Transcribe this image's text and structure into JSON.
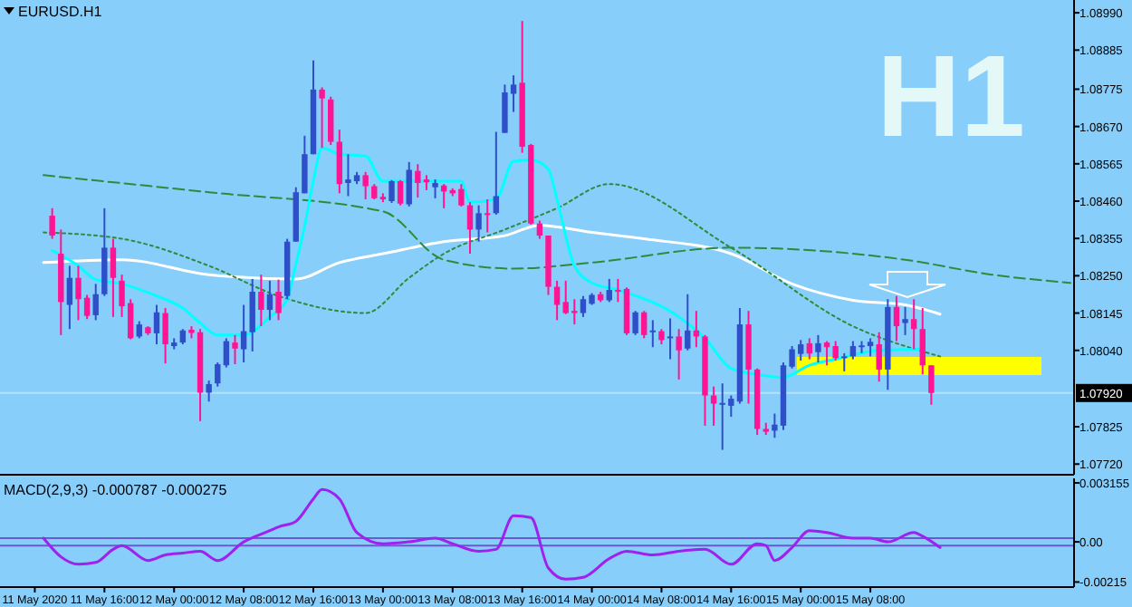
{
  "chart_data": [
    {
      "type": "candlestick",
      "title": "EURUSD.H1",
      "annotations": [
        "H1"
      ],
      "tick_labels": "y",
      "xlim": [
        "2020-05-11T04:00",
        "2020-05-16T07:24"
      ],
      "ylim": [
        1.0769,
        1.09026
      ],
      "yticks": [
        {
          "value": 1.0899,
          "label": "1.08990"
        },
        {
          "value": 1.08885,
          "label": "1.08885"
        },
        {
          "value": 1.08775,
          "label": "1.08775"
        },
        {
          "value": 1.0867,
          "label": "1.08670"
        },
        {
          "value": 1.08565,
          "label": "1.08565"
        },
        {
          "value": 1.0846,
          "label": "1.08460"
        },
        {
          "value": 1.08355,
          "label": "1.08355"
        },
        {
          "value": 1.0825,
          "label": "1.08250"
        },
        {
          "value": 1.08145,
          "label": "1.08145"
        },
        {
          "value": 1.0804,
          "label": "1.08040"
        },
        {
          "value": 1.07825,
          "label": "1.07825"
        },
        {
          "value": 1.0772,
          "label": "1.07720"
        }
      ],
      "ref_lines": [
        {
          "axis": "y",
          "value": 1.0792,
          "label": "1.07920",
          "color": "#b4e2fb"
        }
      ],
      "x": [
        "2020-05-11T10:00",
        "2020-05-11T11:00",
        "2020-05-11T12:00",
        "2020-05-11T13:00",
        "2020-05-11T14:00",
        "2020-05-11T15:00",
        "2020-05-11T16:00",
        "2020-05-11T17:00",
        "2020-05-11T18:00",
        "2020-05-11T19:00",
        "2020-05-11T20:00",
        "2020-05-11T21:00",
        "2020-05-11T22:00",
        "2020-05-11T23:00",
        "2020-05-12T00:00",
        "2020-05-12T01:00",
        "2020-05-12T02:00",
        "2020-05-12T03:00",
        "2020-05-12T04:00",
        "2020-05-12T05:00",
        "2020-05-12T06:00",
        "2020-05-12T07:00",
        "2020-05-12T08:00",
        "2020-05-12T09:00",
        "2020-05-12T10:00",
        "2020-05-12T11:00",
        "2020-05-12T12:00",
        "2020-05-12T13:00",
        "2020-05-12T14:00",
        "2020-05-12T15:00",
        "2020-05-12T16:00",
        "2020-05-12T17:00",
        "2020-05-12T18:00",
        "2020-05-12T19:00",
        "2020-05-12T20:00",
        "2020-05-12T21:00",
        "2020-05-12T22:00",
        "2020-05-12T23:00",
        "2020-05-13T00:00",
        "2020-05-13T01:00",
        "2020-05-13T02:00",
        "2020-05-13T03:00",
        "2020-05-13T04:00",
        "2020-05-13T05:00",
        "2020-05-13T06:00",
        "2020-05-13T07:00",
        "2020-05-13T08:00",
        "2020-05-13T09:00",
        "2020-05-13T10:00",
        "2020-05-13T11:00",
        "2020-05-13T12:00",
        "2020-05-13T13:00",
        "2020-05-13T14:00",
        "2020-05-13T15:00",
        "2020-05-13T16:00",
        "2020-05-13T17:00",
        "2020-05-13T18:00",
        "2020-05-13T19:00",
        "2020-05-13T20:00",
        "2020-05-13T21:00",
        "2020-05-13T22:00",
        "2020-05-13T23:00",
        "2020-05-14T00:00",
        "2020-05-14T01:00",
        "2020-05-14T02:00",
        "2020-05-14T03:00",
        "2020-05-14T04:00",
        "2020-05-14T05:00",
        "2020-05-14T06:00",
        "2020-05-14T07:00",
        "2020-05-14T08:00",
        "2020-05-14T09:00",
        "2020-05-14T10:00",
        "2020-05-14T11:00",
        "2020-05-14T12:00",
        "2020-05-14T13:00",
        "2020-05-14T14:00",
        "2020-05-14T15:00",
        "2020-05-14T16:00",
        "2020-05-14T17:00",
        "2020-05-14T18:00",
        "2020-05-14T19:00",
        "2020-05-14T20:00",
        "2020-05-14T21:00",
        "2020-05-14T22:00",
        "2020-05-14T23:00",
        "2020-05-15T00:00",
        "2020-05-15T01:00",
        "2020-05-15T02:00",
        "2020-05-15T03:00",
        "2020-05-15T04:00",
        "2020-05-15T05:00",
        "2020-05-15T06:00",
        "2020-05-15T07:00",
        "2020-05-15T08:00",
        "2020-05-15T09:00",
        "2020-05-15T10:00",
        "2020-05-15T11:00",
        "2020-05-15T12:00",
        "2020-05-15T13:00",
        "2020-05-15T14:00",
        "2020-05-15T15:00"
      ],
      "ohlc": [
        [
          1.08419,
          1.0844,
          1.08354,
          1.08363
        ],
        [
          1.08312,
          1.0838,
          1.08083,
          1.08176
        ],
        [
          1.08168,
          1.08278,
          1.081,
          1.08244
        ],
        [
          1.08244,
          1.08278,
          1.08125,
          1.08184
        ],
        [
          1.08188,
          1.08196,
          1.08128,
          1.08137
        ],
        [
          1.08139,
          1.08227,
          1.08125,
          1.08198
        ],
        [
          1.08198,
          1.0844,
          1.08193,
          1.08329
        ],
        [
          1.08329,
          1.08354,
          1.08134,
          1.08244
        ],
        [
          1.08236,
          1.08253,
          1.08134,
          1.08164
        ],
        [
          1.08173,
          1.08184,
          1.08071,
          1.08074
        ],
        [
          1.08079,
          1.08122,
          1.08074,
          1.08113
        ],
        [
          1.08105,
          1.08108,
          1.08083,
          1.08088
        ],
        [
          1.08088,
          1.08168,
          1.08057,
          1.08147
        ],
        [
          1.08145,
          1.08159,
          1.08003,
          1.08057
        ],
        [
          1.08052,
          1.08074,
          1.08043,
          1.08062
        ],
        [
          1.08062,
          1.081,
          1.08057,
          1.08096
        ],
        [
          1.08098,
          1.08108,
          1.08074,
          1.08089
        ],
        [
          1.08091,
          1.081,
          1.07841,
          1.07921
        ],
        [
          1.07921,
          1.07955,
          1.07896,
          1.07945
        ],
        [
          1.07947,
          1.08006,
          1.07938,
          1.08001
        ],
        [
          1.07998,
          1.08074,
          1.07992,
          1.08066
        ],
        [
          1.08062,
          1.08083,
          1.08001,
          1.08045
        ],
        [
          1.08043,
          1.08168,
          1.08006,
          1.08094
        ],
        [
          1.08091,
          1.08241,
          1.08037,
          1.08205
        ],
        [
          1.08205,
          1.08253,
          1.08108,
          1.08154
        ],
        [
          1.08154,
          1.08236,
          1.08125,
          1.08198
        ],
        [
          1.08205,
          1.08239,
          1.08125,
          1.08145
        ],
        [
          1.08193,
          1.08354,
          1.08184,
          1.08346
        ],
        [
          1.08346,
          1.08499,
          1.08346,
          1.08485
        ],
        [
          1.08482,
          1.08644,
          1.08482,
          1.08592
        ],
        [
          1.08592,
          1.08856,
          1.08592,
          1.08774
        ],
        [
          1.08774,
          1.0878,
          1.0861,
          1.08749
        ],
        [
          1.08746,
          1.08754,
          1.08618,
          1.08627
        ],
        [
          1.08627,
          1.08661,
          1.08482,
          1.08508
        ],
        [
          1.08511,
          1.08592,
          1.08474,
          1.08521
        ],
        [
          1.08516,
          1.08542,
          1.08508,
          1.08533
        ],
        [
          1.08533,
          1.08542,
          1.08465,
          1.08502
        ],
        [
          1.08502,
          1.08508,
          1.08465,
          1.08468
        ],
        [
          1.08472,
          1.08482,
          1.08457,
          1.08465
        ],
        [
          1.0846,
          1.08519,
          1.08455,
          1.08516
        ],
        [
          1.08516,
          1.08519,
          1.08448,
          1.08453
        ],
        [
          1.08451,
          1.0857,
          1.08445,
          1.08548
        ],
        [
          1.08545,
          1.08564,
          1.0847,
          1.08511
        ],
        [
          1.08521,
          1.08533,
          1.08491,
          1.08513
        ],
        [
          1.08499,
          1.08521,
          1.08468,
          1.08511
        ],
        [
          1.08504,
          1.08508,
          1.0844,
          1.08487
        ],
        [
          1.08491,
          1.08496,
          1.08474,
          1.08482
        ],
        [
          1.08494,
          1.08508,
          1.08445,
          1.08448
        ],
        [
          1.08448,
          1.08457,
          1.08312,
          1.0838
        ],
        [
          1.0838,
          1.08448,
          1.08346,
          1.08426
        ],
        [
          1.08426,
          1.08465,
          1.08372,
          1.08421
        ],
        [
          1.08426,
          1.08655,
          1.08422,
          1.08474
        ],
        [
          1.08652,
          1.08788,
          1.08652,
          1.08766
        ],
        [
          1.08762,
          1.08814,
          1.08711,
          1.08788
        ],
        [
          1.08793,
          1.08967,
          1.08596,
          1.08613
        ],
        [
          1.08618,
          1.08621,
          1.08394,
          1.08397
        ],
        [
          1.08397,
          1.08405,
          1.08354,
          1.08363
        ],
        [
          1.08363,
          1.08363,
          1.08196,
          1.08219
        ],
        [
          1.08219,
          1.08236,
          1.08125,
          1.08168
        ],
        [
          1.08176,
          1.08236,
          1.08142,
          1.08145
        ],
        [
          1.08151,
          1.08184,
          1.08113,
          1.08145
        ],
        [
          1.08145,
          1.08193,
          1.08134,
          1.08184
        ],
        [
          1.08171,
          1.08201,
          1.08168,
          1.08196
        ],
        [
          1.08198,
          1.08205,
          1.08176,
          1.08181
        ],
        [
          1.08181,
          1.08241,
          1.08176,
          1.0821
        ],
        [
          1.0821,
          1.08241,
          1.08176,
          1.08205
        ],
        [
          1.08213,
          1.08217,
          1.08083,
          1.08088
        ],
        [
          1.08088,
          1.08151,
          1.08083,
          1.08147
        ],
        [
          1.08147,
          1.08151,
          1.08074,
          1.08083
        ],
        [
          1.08091,
          1.08125,
          1.08049,
          1.08096
        ],
        [
          1.08094,
          1.081,
          1.08057,
          1.08069
        ],
        [
          1.08074,
          1.0813,
          1.08015,
          1.08079
        ],
        [
          1.08079,
          1.081,
          1.07958,
          1.0804
        ],
        [
          1.08045,
          1.08198,
          1.0804,
          1.08096
        ],
        [
          1.08096,
          1.08151,
          1.08049,
          1.08079
        ],
        [
          1.08079,
          1.08083,
          1.07828,
          1.07913
        ],
        [
          1.07913,
          1.07938,
          1.07828,
          1.0789
        ],
        [
          1.07887,
          1.07947,
          1.0776,
          1.07892
        ],
        [
          1.07884,
          1.07913,
          1.07853,
          1.07904
        ],
        [
          1.07896,
          1.08159,
          1.0789,
          1.08113
        ],
        [
          1.08113,
          1.08151,
          1.0789,
          1.07986
        ],
        [
          1.07986,
          1.07989,
          1.07802,
          1.07819
        ],
        [
          1.07819,
          1.07836,
          1.07802,
          1.07811
        ],
        [
          1.07814,
          1.07862,
          1.07794,
          1.07831
        ],
        [
          1.07828,
          1.08006,
          1.07816,
          1.07998
        ],
        [
          1.07994,
          1.08052,
          1.07989,
          1.08043
        ],
        [
          1.0803,
          1.08069,
          1.08011,
          1.08057
        ],
        [
          1.0806,
          1.08074,
          1.08015,
          1.08031
        ],
        [
          1.08035,
          1.08083,
          1.08006,
          1.0806
        ],
        [
          1.08062,
          1.08066,
          1.07998,
          1.08049
        ],
        [
          1.08052,
          1.08066,
          1.08011,
          1.08018
        ],
        [
          1.0802,
          1.08032,
          1.07981,
          1.08023
        ],
        [
          1.08023,
          1.08066,
          1.08015,
          1.08052
        ],
        [
          1.08049,
          1.08066,
          1.08032,
          1.08054
        ],
        [
          1.08052,
          1.08074,
          1.08023,
          1.08064
        ],
        [
          1.08057,
          1.08091,
          1.07952,
          1.07986
        ],
        [
          1.07986,
          1.08184,
          1.07929,
          1.08162
        ],
        [
          1.08162,
          1.08193,
          1.08066,
          1.08108
        ],
        [
          1.08117,
          1.08162,
          1.08083,
          1.08128
        ],
        [
          1.08128,
          1.08184,
          1.08043,
          1.081
        ],
        [
          1.081,
          1.08159,
          1.07972,
          1.07998
        ],
        [
          1.07998,
          1.07998,
          1.07887,
          1.0792
        ]
      ],
      "colors": [
        "#ff1493",
        "#ff1493",
        "#2f4fc9",
        "#ff1493",
        "#ff1493",
        "#2f4fc9",
        "#2f4fc9",
        "#ff1493",
        "#ff1493",
        "#ff1493",
        "#2f4fc9",
        "#ff1493",
        "#2f4fc9",
        "#ff1493",
        "#2f4fc9",
        "#2f4fc9",
        "#ff1493",
        "#ff1493",
        "#2f4fc9",
        "#2f4fc9",
        "#2f4fc9",
        "#ff1493",
        "#2f4fc9",
        "#2f4fc9",
        "#ff1493",
        "#2f4fc9",
        "#ff1493",
        "#2f4fc9",
        "#2f4fc9",
        "#2f4fc9",
        "#2f4fc9",
        "#ff1493",
        "#ff1493",
        "#ff1493",
        "#2f4fc9",
        "#2f4fc9",
        "#ff1493",
        "#ff1493",
        "#ff1493",
        "#2f4fc9",
        "#ff1493",
        "#2f4fc9",
        "#ff1493",
        "#ff1493",
        "#2f4fc9",
        "#ff1493",
        "#ff1493",
        "#ff1493",
        "#ff1493",
        "#2f4fc9",
        "#ff1493",
        "#2f4fc9",
        "#2f4fc9",
        "#2f4fc9",
        "#ff1493",
        "#ff1493",
        "#ff1493",
        "#ff1493",
        "#ff1493",
        "#ff1493",
        "#ff1493",
        "#2f4fc9",
        "#2f4fc9",
        "#ff1493",
        "#2f4fc9",
        "#ff1493",
        "#ff1493",
        "#2f4fc9",
        "#ff1493",
        "#2f4fc9",
        "#ff1493",
        "#2f4fc9",
        "#ff1493",
        "#2f4fc9",
        "#ff1493",
        "#ff1493",
        "#ff1493",
        "#2f4fc9",
        "#2f4fc9",
        "#2f4fc9",
        "#ff1493",
        "#ff1493",
        "#ff1493",
        "#2f4fc9",
        "#2f4fc9",
        "#2f4fc9",
        "#2f4fc9",
        "#ff1493",
        "#2f4fc9",
        "#ff1493",
        "#ff1493",
        "#2f4fc9",
        "#2f4fc9",
        "#2f4fc9",
        "#2f4fc9",
        "#ff1493",
        "#2f4fc9",
        "#ff1493",
        "#2f4fc9",
        "#ff1493",
        "#ff1493",
        "#ff1493"
      ],
      "series": [
        {
          "type": "line",
          "color": "#ffffff",
          "x": [
            "2020-05-11T09:00",
            "2020-05-11T18:00",
            "2020-05-12T04:00",
            "2020-05-12T14:00",
            "2020-05-12T19:00",
            "2020-05-13T00:00",
            "2020-05-13T07:00",
            "2020-05-13T14:00",
            "2020-05-13T18:00",
            "2020-05-14T00:00",
            "2020-05-14T06:00",
            "2020-05-14T16:00",
            "2020-05-14T23:00",
            "2020-05-15T06:00",
            "2020-05-15T12:00",
            "2020-05-15T16:00"
          ],
          "values": [
            1.08287,
            1.08295,
            1.08253,
            1.08241,
            1.08287,
            1.08312,
            1.08346,
            1.08363,
            1.08392,
            1.08372,
            1.08354,
            1.08312,
            1.08227,
            1.08181,
            1.08168,
            1.08142
          ]
        },
        {
          "type": "line",
          "color": "#2e8b3a",
          "line_style": "dashed",
          "x": [
            "2020-05-11T09:00",
            "2020-05-12T04:00",
            "2020-05-13T00:00",
            "2020-05-13T07:00",
            "2020-05-13T15:00",
            "2020-05-14T00:00",
            "2020-05-14T16:00",
            "2020-05-15T12:00",
            "2020-05-15T22:00",
            "2020-05-16T07:00"
          ],
          "values": [
            1.08533,
            1.08485,
            1.08431,
            1.08295,
            1.0827,
            1.08287,
            1.08329,
            1.08295,
            1.08253,
            1.0823
          ]
        },
        {
          "type": "line",
          "color": "#2e8b3a",
          "line_style": "dotted",
          "x": [
            "2020-05-11T09:00",
            "2020-05-11T18:00",
            "2020-05-12T04:00",
            "2020-05-12T12:00",
            "2020-05-12T22:00",
            "2020-05-13T03:00",
            "2020-05-13T07:00",
            "2020-05-13T14:00",
            "2020-05-13T20:00",
            "2020-05-14T02:00",
            "2020-05-14T16:00",
            "2020-05-15T06:00",
            "2020-05-15T16:00"
          ],
          "values": [
            1.08372,
            1.08354,
            1.08278,
            1.08193,
            1.08145,
            1.08244,
            1.08312,
            1.0838,
            1.0844,
            1.08508,
            1.08329,
            1.08108,
            1.08023
          ]
        },
        {
          "type": "line",
          "color": "#00ffff",
          "x": [
            "2020-05-11T10:00",
            "2020-05-11T13:00",
            "2020-05-11T15:00",
            "2020-05-11T18:00",
            "2020-05-11T22:00",
            "2020-05-12T01:00",
            "2020-05-12T03:00",
            "2020-05-12T05:00",
            "2020-05-12T08:00",
            "2020-05-12T11:00",
            "2020-05-12T13:00",
            "2020-05-12T14:00",
            "2020-05-12T15:00",
            "2020-05-12T16:00",
            "2020-05-12T17:00",
            "2020-05-12T19:00",
            "2020-05-12T22:00",
            "2020-05-13T00:00",
            "2020-05-13T03:00",
            "2020-05-13T09:00",
            "2020-05-13T10:00",
            "2020-05-13T13:00",
            "2020-05-13T15:00",
            "2020-05-13T17:00",
            "2020-05-13T19:00",
            "2020-05-13T20:00",
            "2020-05-13T22:00",
            "2020-05-14T00:00",
            "2020-05-14T03:00",
            "2020-05-14T10:00",
            "2020-05-14T13:00",
            "2020-05-14T16:00",
            "2020-05-14T19:00",
            "2020-05-14T22:00",
            "2020-05-15T01:00",
            "2020-05-15T04:00",
            "2020-05-15T09:00",
            "2020-05-15T14:00"
          ],
          "values": [
            1.08321,
            1.08278,
            1.08239,
            1.08227,
            1.08193,
            1.08159,
            1.08117,
            1.08083,
            1.08083,
            1.08134,
            1.08184,
            1.08283,
            1.08389,
            1.08516,
            1.0861,
            1.08592,
            1.08587,
            1.08516,
            1.08516,
            1.08516,
            1.08457,
            1.08465,
            1.08572,
            1.08576,
            1.0855,
            1.08465,
            1.08278,
            1.0823,
            1.0821,
            1.08134,
            1.08074,
            1.07989,
            1.07972,
            1.07964,
            1.07998,
            1.08015,
            1.0804,
            1.08043
          ]
        }
      ]
    },
    {
      "type": "line",
      "title": "MACD(2,9,3) -0.000787 -0.000275",
      "xlim": [
        "2020-05-11T04:00",
        "2020-05-16T07:24"
      ],
      "ylim": [
        -0.00242,
        0.0034
      ],
      "yticks": [
        0.003155,
        {
          "value": 0,
          "label": "0.00"
        },
        -0.00215
      ],
      "xticks": [
        {
          "value": "2020-05-11T08:00",
          "label": "11 May 2020"
        },
        {
          "value": "2020-05-11T16:00",
          "label": "11 May 16:00"
        },
        {
          "value": "2020-05-12T00:00",
          "label": "12 May 00:00"
        },
        {
          "value": "2020-05-12T08:00",
          "label": "12 May 08:00"
        },
        {
          "value": "2020-05-12T16:00",
          "label": "12 May 16:00"
        },
        {
          "value": "2020-05-13T00:00",
          "label": "13 May 00:00"
        },
        {
          "value": "2020-05-13T08:00",
          "label": "13 May 08:00"
        },
        {
          "value": "2020-05-13T16:00",
          "label": "13 May 16:00"
        },
        {
          "value": "2020-05-14T00:00",
          "label": "14 May 00:00"
        },
        {
          "value": "2020-05-14T08:00",
          "label": "14 May 08:00"
        },
        {
          "value": "2020-05-14T16:00",
          "label": "14 May 16:00"
        },
        {
          "value": "2020-05-15T00:00",
          "label": "15 May 00:00"
        },
        {
          "value": "2020-05-15T08:00",
          "label": "15 May 08:00"
        }
      ],
      "ref_lines": [
        {
          "axis": "y",
          "value": 0.0002,
          "color": "#6a5acd"
        },
        {
          "axis": "y",
          "value": -0.0002,
          "color": "#6a5acd"
        }
      ],
      "series": [
        {
          "color": "#a020f0",
          "x": [
            "2020-05-11T09:00",
            "2020-05-11T11:00",
            "2020-05-11T13:00",
            "2020-05-11T15:00",
            "2020-05-11T17:00",
            "2020-05-11T18:00",
            "2020-05-11T21:00",
            "2020-05-11T23:00",
            "2020-05-12T01:00",
            "2020-05-12T03:00",
            "2020-05-12T05:00",
            "2020-05-12T08:00",
            "2020-05-12T11:00",
            "2020-05-12T12:00",
            "2020-05-12T14:00",
            "2020-05-12T16:00",
            "2020-05-12T17:00",
            "2020-05-12T19:00",
            "2020-05-12T21:00",
            "2020-05-13T00:00",
            "2020-05-13T03:00",
            "2020-05-13T06:00",
            "2020-05-13T08:00",
            "2020-05-13T11:00",
            "2020-05-13T13:00",
            "2020-05-13T15:00",
            "2020-05-13T17:00",
            "2020-05-13T19:00",
            "2020-05-13T21:00",
            "2020-05-13T23:00",
            "2020-05-14T02:00",
            "2020-05-14T04:00",
            "2020-05-14T07:00",
            "2020-05-14T10:00",
            "2020-05-14T13:00",
            "2020-05-14T16:00",
            "2020-05-14T19:00",
            "2020-05-14T20:00",
            "2020-05-14T21:00",
            "2020-05-14T23:00",
            "2020-05-15T01:00",
            "2020-05-15T03:00",
            "2020-05-15T06:00",
            "2020-05-15T08:00",
            "2020-05-15T10:00",
            "2020-05-15T13:00",
            "2020-05-15T14:00",
            "2020-05-15T16:00"
          ],
          "values": [
            0.0002,
            -0.0008,
            -0.0012,
            -0.0011,
            -0.0004,
            -0.0002,
            -0.001,
            -0.0007,
            -0.0006,
            -0.0005,
            -0.001,
            0,
            0.0006,
            0.0008,
            0.0011,
            0.0023,
            0.0028,
            0.0023,
            0.0005,
            -0.0001,
            0,
            0.0002,
            -0.0001,
            -0.0005,
            -0.0004,
            0.0014,
            0.0013,
            -0.0014,
            -0.002,
            -0.0019,
            -0.0009,
            -0.0005,
            -0.0007,
            -0.0005,
            -0.0004,
            -0.0012,
            -0.0001,
            -0.0002,
            -0.001,
            -0.0003,
            0.0006,
            0.0005,
            0.0002,
            0.0002,
            0,
            0.0005,
            0.0003,
            -0.0003
          ]
        }
      ]
    }
  ]
}
